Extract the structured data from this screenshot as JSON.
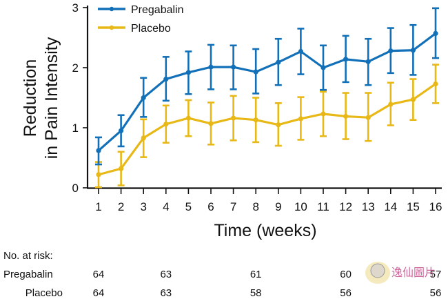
{
  "chart_data": {
    "type": "line",
    "title": "",
    "xlabel": "Time (weeks)",
    "ylabel_lines": [
      "Reduction",
      "in Pain Intensity"
    ],
    "x": [
      1,
      2,
      3,
      4,
      5,
      6,
      7,
      8,
      9,
      10,
      11,
      12,
      13,
      14,
      15,
      16
    ],
    "x_tick_labels": [
      "1",
      "2",
      "3",
      "4",
      "5",
      "6",
      "7",
      "8",
      "9",
      "10",
      "11",
      "12",
      "13",
      "14",
      "15",
      "16"
    ],
    "ylim": [
      0,
      3
    ],
    "y_ticks": [
      0,
      1,
      2,
      3
    ],
    "y_tick_labels": [
      "0",
      "1",
      "2",
      "3"
    ],
    "grid": false,
    "legend_position": "top-left",
    "error_bars": true,
    "series": [
      {
        "name": "Pregabalin",
        "color": "#1270b8",
        "values": [
          0.62,
          0.95,
          1.5,
          1.81,
          1.92,
          2.01,
          2.01,
          1.93,
          2.09,
          2.27,
          2.0,
          2.14,
          2.1,
          2.28,
          2.29,
          2.57
        ],
        "upper": [
          0.84,
          1.21,
          1.83,
          2.18,
          2.27,
          2.38,
          2.37,
          2.31,
          2.48,
          2.65,
          2.37,
          2.53,
          2.48,
          2.66,
          2.71,
          2.99
        ],
        "lower": [
          0.39,
          0.69,
          1.18,
          1.45,
          1.56,
          1.64,
          1.64,
          1.57,
          1.71,
          1.89,
          1.63,
          1.76,
          1.71,
          1.91,
          1.88,
          2.16
        ]
      },
      {
        "name": "Placebo",
        "color": "#e8b817",
        "values": [
          0.22,
          0.32,
          0.83,
          1.06,
          1.16,
          1.07,
          1.16,
          1.13,
          1.05,
          1.15,
          1.23,
          1.19,
          1.17,
          1.39,
          1.47,
          1.73
        ],
        "upper": [
          0.43,
          0.6,
          1.14,
          1.37,
          1.46,
          1.42,
          1.53,
          1.5,
          1.41,
          1.51,
          1.6,
          1.58,
          1.58,
          1.75,
          1.81,
          2.05
        ],
        "lower": [
          0.01,
          0.04,
          0.51,
          0.75,
          0.86,
          0.72,
          0.79,
          0.76,
          0.7,
          0.8,
          0.86,
          0.81,
          0.78,
          1.04,
          1.13,
          1.41
        ]
      }
    ]
  },
  "risk_table": {
    "header": "No. at risk:",
    "weeks": [
      1,
      4,
      8,
      12,
      16
    ],
    "rows": [
      {
        "label": "Pregabalin",
        "values": [
          "64",
          "63",
          "61",
          "60",
          "57"
        ]
      },
      {
        "label": "Placebo",
        "values": [
          "64",
          "63",
          "58",
          "56",
          "56"
        ]
      }
    ]
  },
  "watermark": {
    "text": "逸仙圖片"
  }
}
